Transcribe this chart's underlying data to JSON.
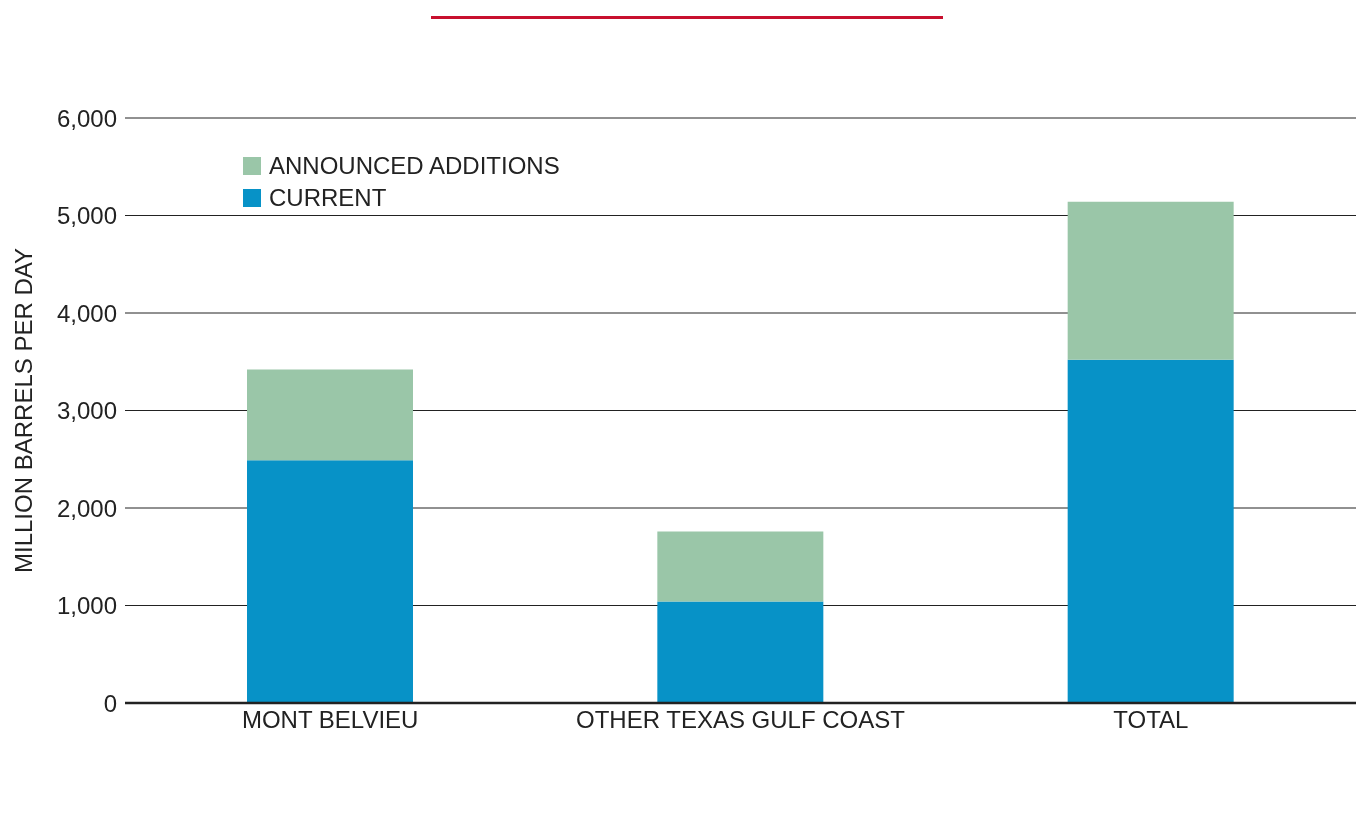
{
  "chart_data": {
    "type": "bar",
    "ylabel": "MILLION BARRELS PER DAY",
    "categories": [
      "MONT BELVIEU",
      "OTHER TEXAS GULF COAST",
      "TOTAL"
    ],
    "stacked": true,
    "series": [
      {
        "name": "CURRENT",
        "color": "#0792c7",
        "values": [
          2490,
          1040,
          3520
        ]
      },
      {
        "name": "ANNOUNCED ADDITIONS",
        "color": "#9ac6a8",
        "values": [
          930,
          720,
          1620
        ]
      }
    ],
    "ylim": [
      0,
      6000
    ],
    "yticks": [
      {
        "value": 0,
        "label": "0"
      },
      {
        "value": 1000,
        "label": "1,000"
      },
      {
        "value": 2000,
        "label": "2,000"
      },
      {
        "value": 3000,
        "label": "3,000"
      },
      {
        "value": 4000,
        "label": "4,000"
      },
      {
        "value": 5000,
        "label": "5,000"
      },
      {
        "value": 6000,
        "label": "6,000"
      }
    ],
    "grid": "y",
    "legend": "top left"
  }
}
